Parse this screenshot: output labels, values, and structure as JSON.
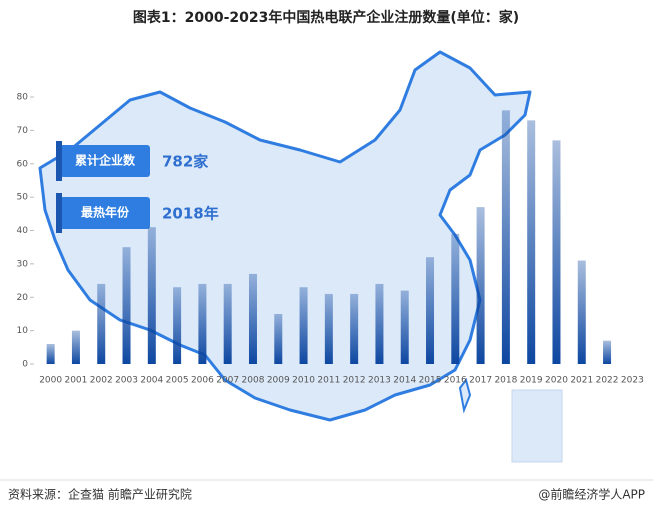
{
  "chart_data": {
    "type": "bar",
    "title": "图表1：2000-2023年中国热电联产企业注册数量(单位：家)",
    "categories": [
      "2000",
      "2001",
      "2002",
      "2003",
      "2004",
      "2005",
      "2006",
      "2007",
      "2008",
      "2009",
      "2010",
      "2011",
      "2012",
      "2013",
      "2014",
      "2015",
      "2016",
      "2017",
      "2018",
      "2019",
      "2020",
      "2021",
      "2022",
      "2023"
    ],
    "values": [
      6,
      10,
      24,
      35,
      41,
      23,
      24,
      24,
      27,
      15,
      23,
      21,
      21,
      24,
      22,
      32,
      39,
      47,
      76,
      73,
      67,
      31,
      7,
      0
    ],
    "color": "#0d47a1",
    "ylim": [
      0,
      80
    ],
    "yticks": [
      0,
      10,
      20,
      30,
      40,
      50,
      60,
      70,
      80
    ],
    "annotations": [
      {
        "label": "累计企业数",
        "text": "782家"
      },
      {
        "label": "最热年份",
        "text": "2018年"
      }
    ],
    "source": "资料来源：企查猫 前瞻产业研究院",
    "credit": "@前瞻经济学人APP"
  }
}
